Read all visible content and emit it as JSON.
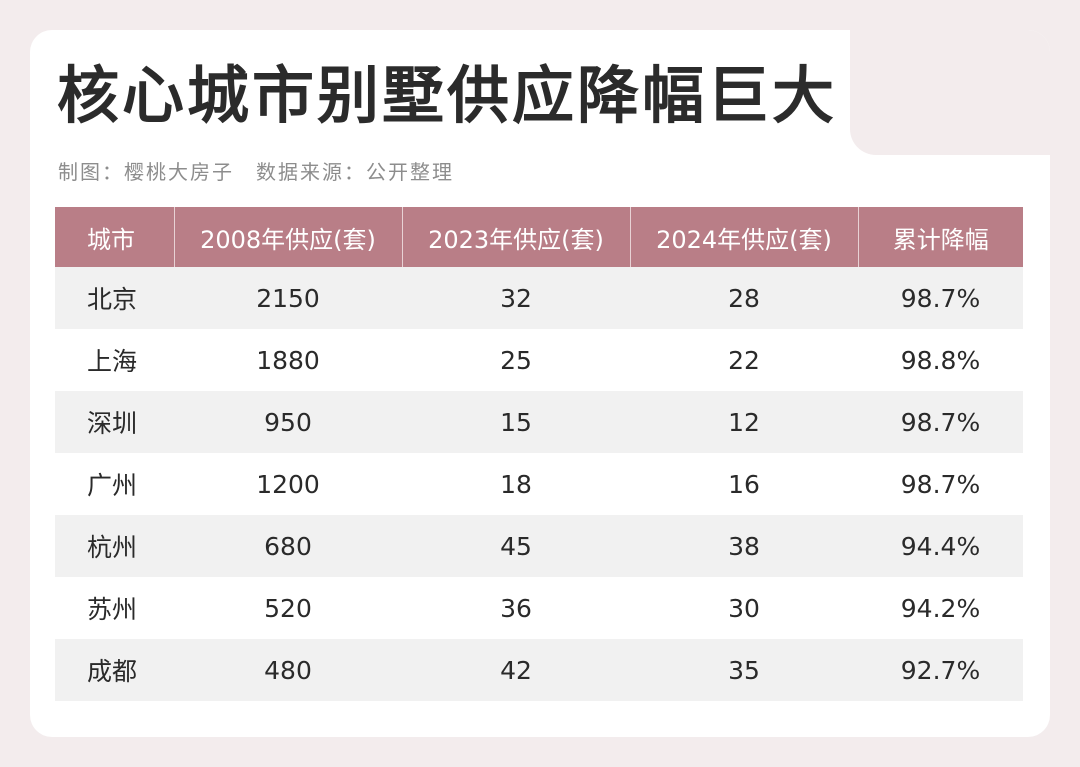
{
  "page": {
    "title": "核心城市别墅供应降幅巨大",
    "credit_maker": "制图：樱桃大房子",
    "credit_source": "数据来源：公开整理"
  },
  "chart_data": {
    "type": "table",
    "columns": [
      "城市",
      "2008年供应(套)",
      "2023年供应(套)",
      "2024年供应(套)",
      "累计降幅"
    ],
    "rows": [
      [
        "北京",
        "2150",
        "32",
        "28",
        "98.7%"
      ],
      [
        "上海",
        "1880",
        "25",
        "22",
        "98.8%"
      ],
      [
        "深圳",
        "950",
        "15",
        "12",
        "98.7%"
      ],
      [
        "广州",
        "1200",
        "18",
        "16",
        "98.7%"
      ],
      [
        "杭州",
        "680",
        "45",
        "38",
        "94.4%"
      ],
      [
        "苏州",
        "520",
        "36",
        "30",
        "94.2%"
      ],
      [
        "成都",
        "480",
        "42",
        "35",
        "92.7%"
      ]
    ]
  },
  "colors": {
    "header_bg": "#b97e87",
    "header_text": "#ffffff",
    "row_alt_bg": "#f1f1f1",
    "page_bg": "#f3eced"
  }
}
